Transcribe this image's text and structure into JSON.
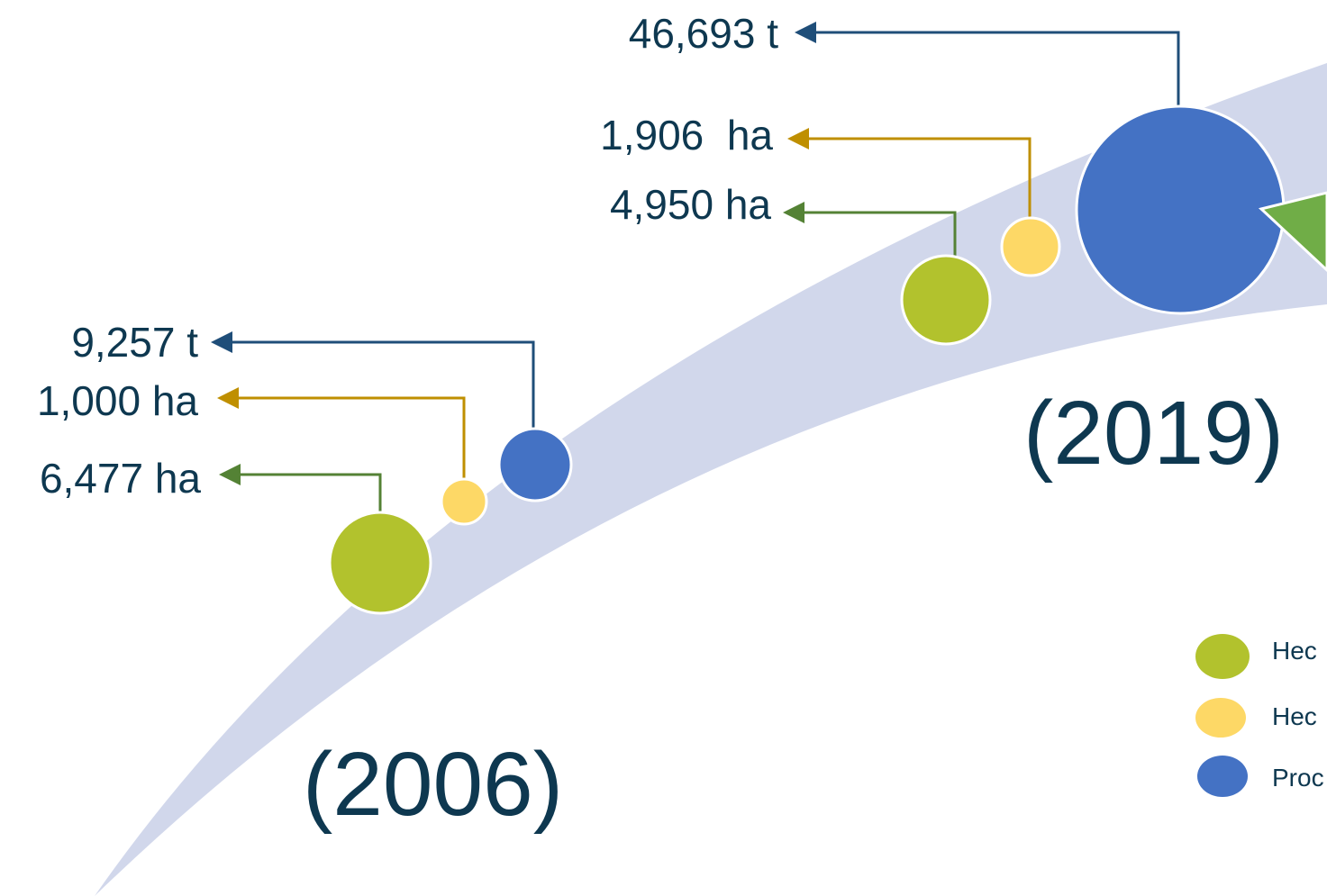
{
  "colors": {
    "band": "#d1d7eb",
    "green": "#b2c22d",
    "yellow": "#fdd866",
    "blue": "#4472c4",
    "arrow_green": "#548235",
    "arrow_gold": "#bf8f00",
    "arrow_blue": "#1f4e79",
    "text": "#0e3850",
    "marker_green": "#70ad47"
  },
  "year_2006": {
    "label": "(2006)",
    "values": {
      "green": "6,477 ha",
      "yellow": "1,000 ha",
      "blue": "9,257 t"
    }
  },
  "year_2019": {
    "label": "(2019)",
    "values": {
      "green": "4,950 ha",
      "yellow": "1,906  ha",
      "blue": "46,693 t"
    }
  },
  "legend": {
    "items": [
      {
        "color_key": "green",
        "text": "Hec"
      },
      {
        "color_key": "yellow",
        "text": "Hec"
      },
      {
        "color_key": "blue",
        "text": "Proc"
      }
    ]
  }
}
